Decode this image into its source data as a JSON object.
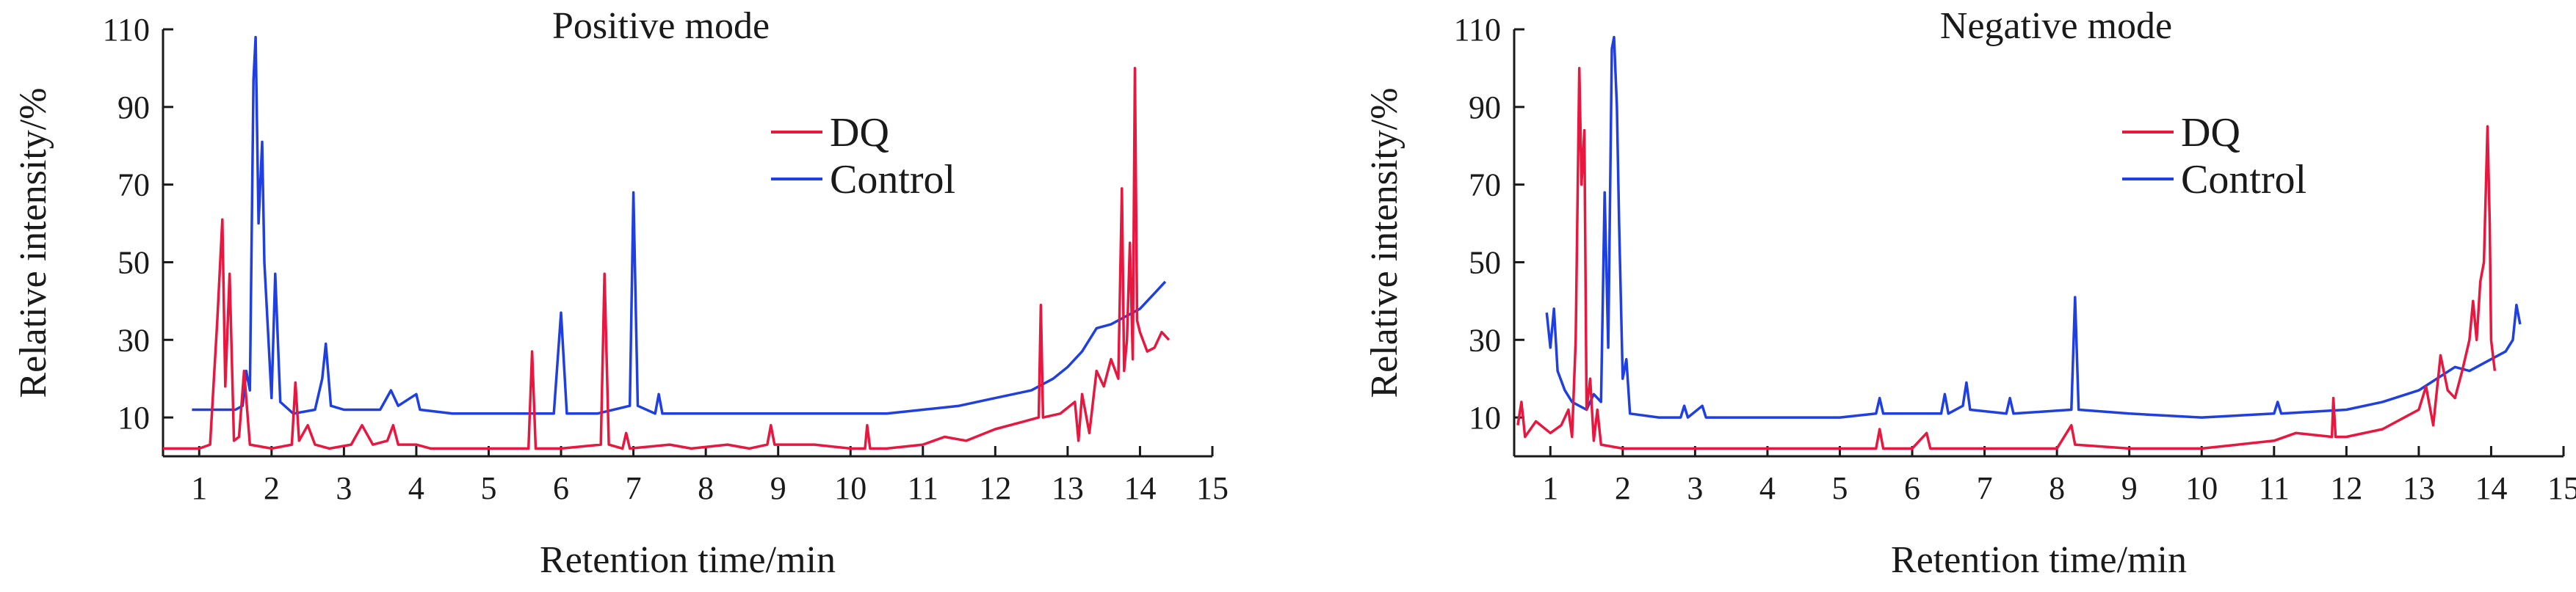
{
  "chart_data": [
    {
      "type": "line",
      "title": "Positive mode",
      "xlabel": "Retention time/min",
      "ylabel": "Relative intensity/%",
      "xlim": [
        0.5,
        15
      ],
      "ylim": [
        0,
        110
      ],
      "xticks": [
        1,
        2,
        3,
        4,
        5,
        6,
        7,
        8,
        9,
        10,
        11,
        12,
        13,
        14,
        15
      ],
      "yticks": [
        10,
        30,
        50,
        70,
        90,
        110
      ],
      "legend": "upper-center",
      "grid": false,
      "series": [
        {
          "name": "DQ",
          "color": "#e8173f",
          "points": [
            [
              0.5,
              2
            ],
            [
              1.0,
              2
            ],
            [
              1.15,
              3
            ],
            [
              1.25,
              35
            ],
            [
              1.32,
              61
            ],
            [
              1.36,
              18
            ],
            [
              1.42,
              47
            ],
            [
              1.48,
              4
            ],
            [
              1.55,
              5
            ],
            [
              1.62,
              22
            ],
            [
              1.7,
              3
            ],
            [
              2.0,
              2
            ],
            [
              2.28,
              3
            ],
            [
              2.33,
              19
            ],
            [
              2.38,
              4
            ],
            [
              2.5,
              8
            ],
            [
              2.6,
              3
            ],
            [
              2.8,
              2
            ],
            [
              3.1,
              3
            ],
            [
              3.25,
              8
            ],
            [
              3.4,
              3
            ],
            [
              3.6,
              4
            ],
            [
              3.68,
              8
            ],
            [
              3.75,
              3
            ],
            [
              4.0,
              3
            ],
            [
              4.2,
              2
            ],
            [
              5.0,
              2
            ],
            [
              5.55,
              2
            ],
            [
              5.6,
              27
            ],
            [
              5.65,
              2
            ],
            [
              6.0,
              2
            ],
            [
              6.55,
              3
            ],
            [
              6.6,
              47
            ],
            [
              6.66,
              3
            ],
            [
              6.85,
              2
            ],
            [
              6.9,
              6
            ],
            [
              6.95,
              2
            ],
            [
              7.5,
              3
            ],
            [
              7.8,
              2
            ],
            [
              8.3,
              3
            ],
            [
              8.6,
              2
            ],
            [
              8.85,
              3
            ],
            [
              8.9,
              8
            ],
            [
              8.95,
              3
            ],
            [
              9.5,
              3
            ],
            [
              10.0,
              2
            ],
            [
              10.2,
              2
            ],
            [
              10.23,
              8
            ],
            [
              10.27,
              2
            ],
            [
              10.5,
              2
            ],
            [
              11.0,
              3
            ],
            [
              11.3,
              5
            ],
            [
              11.6,
              4
            ],
            [
              12.0,
              7
            ],
            [
              12.4,
              9
            ],
            [
              12.6,
              10
            ],
            [
              12.63,
              39
            ],
            [
              12.66,
              10
            ],
            [
              12.9,
              11
            ],
            [
              13.1,
              14
            ],
            [
              13.15,
              4
            ],
            [
              13.2,
              16
            ],
            [
              13.3,
              6
            ],
            [
              13.4,
              22
            ],
            [
              13.5,
              18
            ],
            [
              13.6,
              25
            ],
            [
              13.7,
              20
            ],
            [
              13.75,
              69
            ],
            [
              13.78,
              22
            ],
            [
              13.82,
              30
            ],
            [
              13.86,
              55
            ],
            [
              13.9,
              25
            ],
            [
              13.93,
              100
            ],
            [
              13.96,
              35
            ],
            [
              14.0,
              32
            ],
            [
              14.1,
              27
            ],
            [
              14.2,
              28
            ],
            [
              14.3,
              32
            ],
            [
              14.4,
              30
            ]
          ]
        },
        {
          "name": "Control",
          "color": "#1f3fe0",
          "points": [
            [
              0.9,
              12
            ],
            [
              1.5,
              12
            ],
            [
              1.6,
              13
            ],
            [
              1.65,
              22
            ],
            [
              1.7,
              17
            ],
            [
              1.75,
              97
            ],
            [
              1.78,
              108
            ],
            [
              1.82,
              60
            ],
            [
              1.87,
              81
            ],
            [
              1.9,
              50
            ],
            [
              2.0,
              15
            ],
            [
              2.05,
              47
            ],
            [
              2.12,
              14
            ],
            [
              2.3,
              11
            ],
            [
              2.6,
              12
            ],
            [
              2.7,
              20
            ],
            [
              2.75,
              29
            ],
            [
              2.82,
              13
            ],
            [
              3.0,
              12
            ],
            [
              3.5,
              12
            ],
            [
              3.65,
              17
            ],
            [
              3.75,
              13
            ],
            [
              4.0,
              16
            ],
            [
              4.05,
              12
            ],
            [
              4.5,
              11
            ],
            [
              5.0,
              11
            ],
            [
              5.9,
              11
            ],
            [
              6.0,
              37
            ],
            [
              6.08,
              11
            ],
            [
              6.5,
              11
            ],
            [
              6.95,
              13
            ],
            [
              7.0,
              68
            ],
            [
              7.06,
              13
            ],
            [
              7.3,
              11
            ],
            [
              7.35,
              16
            ],
            [
              7.4,
              11
            ],
            [
              8.0,
              11
            ],
            [
              8.5,
              11
            ],
            [
              9.0,
              11
            ],
            [
              10.0,
              11
            ],
            [
              10.5,
              11
            ],
            [
              11.0,
              12
            ],
            [
              11.5,
              13
            ],
            [
              12.0,
              15
            ],
            [
              12.5,
              17
            ],
            [
              12.8,
              20
            ],
            [
              13.0,
              23
            ],
            [
              13.2,
              27
            ],
            [
              13.4,
              33
            ],
            [
              13.6,
              34
            ],
            [
              13.8,
              36
            ],
            [
              14.0,
              38
            ],
            [
              14.2,
              42
            ],
            [
              14.35,
              45
            ]
          ]
        }
      ]
    },
    {
      "type": "line",
      "title": "Negative mode",
      "xlabel": "Retention time/min",
      "ylabel": "Relative intensity/%",
      "xlim": [
        0.5,
        15
      ],
      "ylim": [
        0,
        110
      ],
      "xticks": [
        1,
        2,
        3,
        4,
        5,
        6,
        7,
        8,
        9,
        10,
        11,
        12,
        13,
        14,
        15
      ],
      "yticks": [
        10,
        30,
        50,
        70,
        90,
        110
      ],
      "legend": "upper-center",
      "grid": false,
      "series": [
        {
          "name": "DQ",
          "color": "#e8173f",
          "points": [
            [
              0.55,
              8
            ],
            [
              0.6,
              14
            ],
            [
              0.65,
              5
            ],
            [
              0.8,
              9
            ],
            [
              1.0,
              6
            ],
            [
              1.15,
              8
            ],
            [
              1.25,
              12
            ],
            [
              1.3,
              5
            ],
            [
              1.35,
              30
            ],
            [
              1.4,
              100
            ],
            [
              1.43,
              70
            ],
            [
              1.47,
              84
            ],
            [
              1.5,
              12
            ],
            [
              1.55,
              20
            ],
            [
              1.6,
              4
            ],
            [
              1.65,
              12
            ],
            [
              1.7,
              3
            ],
            [
              2.0,
              2
            ],
            [
              2.5,
              2
            ],
            [
              3.0,
              2
            ],
            [
              4.0,
              2
            ],
            [
              5.0,
              2
            ],
            [
              5.5,
              2
            ],
            [
              5.55,
              7
            ],
            [
              5.6,
              2
            ],
            [
              6.0,
              2
            ],
            [
              6.2,
              6
            ],
            [
              6.25,
              2
            ],
            [
              7.0,
              2
            ],
            [
              8.0,
              2
            ],
            [
              8.2,
              8
            ],
            [
              8.25,
              3
            ],
            [
              9.0,
              2
            ],
            [
              10.0,
              2
            ],
            [
              10.5,
              3
            ],
            [
              11.0,
              4
            ],
            [
              11.3,
              6
            ],
            [
              11.8,
              5
            ],
            [
              11.82,
              15
            ],
            [
              11.85,
              5
            ],
            [
              12.0,
              5
            ],
            [
              12.5,
              7
            ],
            [
              12.8,
              10
            ],
            [
              13.0,
              12
            ],
            [
              13.1,
              18
            ],
            [
              13.2,
              8
            ],
            [
              13.3,
              26
            ],
            [
              13.4,
              17
            ],
            [
              13.5,
              15
            ],
            [
              13.6,
              22
            ],
            [
              13.7,
              30
            ],
            [
              13.75,
              40
            ],
            [
              13.8,
              30
            ],
            [
              13.85,
              45
            ],
            [
              13.9,
              50
            ],
            [
              13.95,
              85
            ],
            [
              13.98,
              60
            ],
            [
              14.0,
              30
            ],
            [
              14.05,
              22
            ]
          ]
        },
        {
          "name": "Control",
          "color": "#1f3fe0",
          "points": [
            [
              0.95,
              37
            ],
            [
              1.0,
              28
            ],
            [
              1.05,
              38
            ],
            [
              1.1,
              22
            ],
            [
              1.2,
              17
            ],
            [
              1.3,
              14
            ],
            [
              1.5,
              12
            ],
            [
              1.6,
              16
            ],
            [
              1.7,
              14
            ],
            [
              1.75,
              68
            ],
            [
              1.8,
              28
            ],
            [
              1.85,
              105
            ],
            [
              1.88,
              108
            ],
            [
              1.92,
              90
            ],
            [
              1.95,
              60
            ],
            [
              2.0,
              20
            ],
            [
              2.05,
              25
            ],
            [
              2.1,
              11
            ],
            [
              2.5,
              10
            ],
            [
              2.8,
              10
            ],
            [
              2.85,
              13
            ],
            [
              2.9,
              10
            ],
            [
              3.1,
              13
            ],
            [
              3.15,
              10
            ],
            [
              4.0,
              10
            ],
            [
              5.0,
              10
            ],
            [
              5.5,
              11
            ],
            [
              5.55,
              15
            ],
            [
              5.6,
              11
            ],
            [
              6.4,
              11
            ],
            [
              6.45,
              16
            ],
            [
              6.5,
              11
            ],
            [
              6.7,
              13
            ],
            [
              6.75,
              19
            ],
            [
              6.8,
              12
            ],
            [
              7.3,
              11
            ],
            [
              7.35,
              15
            ],
            [
              7.4,
              11
            ],
            [
              8.2,
              12
            ],
            [
              8.25,
              41
            ],
            [
              8.3,
              12
            ],
            [
              9.0,
              11
            ],
            [
              10.0,
              10
            ],
            [
              11.0,
              11
            ],
            [
              11.05,
              14
            ],
            [
              11.1,
              11
            ],
            [
              12.0,
              12
            ],
            [
              12.5,
              14
            ],
            [
              13.0,
              17
            ],
            [
              13.5,
              23
            ],
            [
              13.7,
              22
            ],
            [
              14.0,
              25
            ],
            [
              14.2,
              27
            ],
            [
              14.3,
              30
            ],
            [
              14.35,
              39
            ],
            [
              14.4,
              34
            ]
          ]
        }
      ]
    }
  ]
}
